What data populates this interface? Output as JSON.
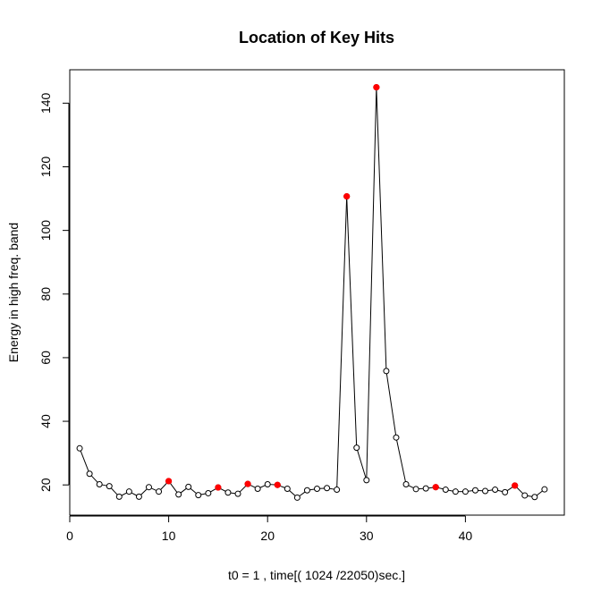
{
  "chart_data": {
    "type": "line",
    "title": "Location of Key Hits",
    "xlabel": "t0 = 1 , time[( 1024 /22050)sec.]",
    "ylabel": "Energy in high freq. band",
    "xlim": [
      0,
      50
    ],
    "ylim": [
      10.5,
      150.5
    ],
    "x_ticks": [
      0,
      10,
      20,
      30,
      40
    ],
    "y_ticks": [
      20,
      40,
      60,
      80,
      100,
      120,
      140
    ],
    "grid": false,
    "legend": "none",
    "series": [
      {
        "x": [
          1,
          2,
          3,
          4,
          5,
          6,
          7,
          8,
          9,
          10,
          11,
          12,
          13,
          14,
          15,
          16,
          17,
          18,
          19,
          20,
          21,
          22,
          23,
          24,
          25,
          26,
          27,
          28,
          29,
          30,
          31,
          32,
          33,
          34,
          35,
          36,
          37,
          38,
          39,
          40,
          41,
          42,
          43,
          44,
          45,
          46,
          47,
          48
        ],
        "values": [
          31.5,
          23.5,
          20.2,
          19.6,
          16.3,
          17.9,
          16.3,
          19.3,
          17.9,
          21.2,
          17.0,
          19.4,
          16.8,
          17.4,
          19.2,
          17.6,
          17.2,
          20.3,
          18.8,
          20.2,
          20.0,
          18.8,
          16.0,
          18.3,
          18.8,
          19.0,
          18.5,
          110.7,
          31.7,
          21.5,
          145.0,
          55.8,
          34.9,
          20.2,
          18.7,
          18.9,
          19.3,
          18.5,
          17.9,
          17.9,
          18.3,
          18.1,
          18.5,
          17.7,
          19.8,
          16.7,
          16.2,
          18.6
        ],
        "line_color": "#000000",
        "marker": "open-circle",
        "marker_color": "#000000"
      }
    ],
    "key_hits": {
      "x": [
        10,
        15,
        18,
        21,
        28,
        31,
        37,
        45
      ],
      "values": [
        21.2,
        19.2,
        20.3,
        20.0,
        110.7,
        145.0,
        19.3,
        19.8
      ],
      "marker": "filled-circle",
      "color": "#ff0000"
    }
  }
}
